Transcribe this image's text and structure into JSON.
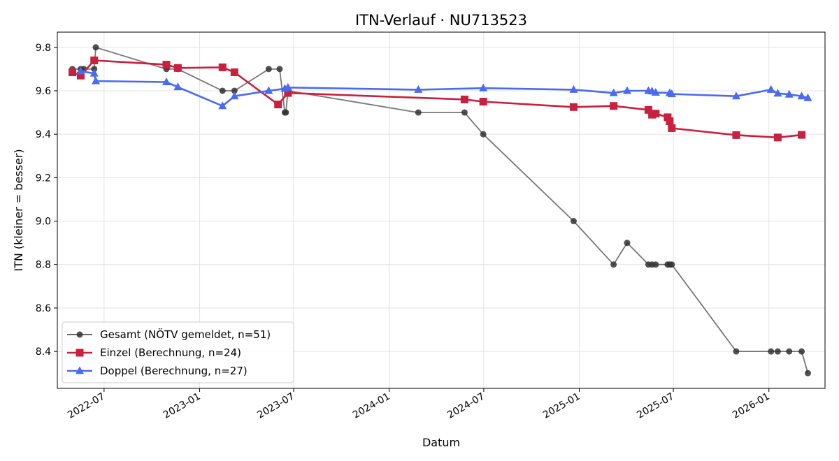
{
  "chart_data": {
    "type": "line",
    "title": "ITN-Verlauf · NU713523",
    "xlabel": "Datum",
    "ylabel": "ITN  (kleiner = besser)",
    "xlim": [
      "2022-04-02",
      "2026-04-19"
    ],
    "ylim": [
      8.23,
      9.87
    ],
    "x_ticks": [
      {
        "date": "2022-07-01",
        "label": "2022-07"
      },
      {
        "date": "2023-01-01",
        "label": "2023-01"
      },
      {
        "date": "2023-07-01",
        "label": "2023-07"
      },
      {
        "date": "2024-01-01",
        "label": "2024-01"
      },
      {
        "date": "2024-07-01",
        "label": "2024-07"
      },
      {
        "date": "2025-01-01",
        "label": "2025-01"
      },
      {
        "date": "2025-07-01",
        "label": "2025-07"
      },
      {
        "date": "2026-01-01",
        "label": "2026-01"
      }
    ],
    "y_ticks": [
      8.4,
      8.6,
      8.8,
      9.0,
      9.2,
      9.4,
      9.6,
      9.8
    ],
    "grid": true,
    "legend_position": "lower-left",
    "series": [
      {
        "name": "Gesamt (NÖTV gemeldet, n=51)",
        "color": "#555555",
        "marker": "circle",
        "points": [
          [
            "2022-05-01",
            9.7
          ],
          [
            "2022-05-17",
            9.7
          ],
          [
            "2022-05-23",
            9.7
          ],
          [
            "2022-06-12",
            9.7
          ],
          [
            "2022-06-15",
            9.8
          ],
          [
            "2022-10-29",
            9.7
          ],
          [
            "2022-11-20",
            9.7
          ],
          [
            "2023-02-14",
            9.6
          ],
          [
            "2023-03-09",
            9.6
          ],
          [
            "2023-05-14",
            9.7
          ],
          [
            "2023-06-04",
            9.7
          ],
          [
            "2023-06-14",
            9.5
          ],
          [
            "2023-06-16",
            9.5
          ],
          [
            "2023-06-20",
            9.6
          ],
          [
            "2024-02-26",
            9.5
          ],
          [
            "2024-05-25",
            9.5
          ],
          [
            "2024-06-30",
            9.4
          ],
          [
            "2024-12-21",
            9.0
          ],
          [
            "2025-03-08",
            8.8
          ],
          [
            "2025-04-03",
            8.9
          ],
          [
            "2025-05-14",
            8.8
          ],
          [
            "2025-05-21",
            8.8
          ],
          [
            "2025-05-28",
            8.8
          ],
          [
            "2025-06-20",
            8.8
          ],
          [
            "2025-06-24",
            8.8
          ],
          [
            "2025-06-28",
            8.8
          ],
          [
            "2025-10-30",
            8.4
          ],
          [
            "2026-01-05",
            8.4
          ],
          [
            "2026-01-18",
            8.4
          ],
          [
            "2026-02-09",
            8.4
          ],
          [
            "2026-03-05",
            8.4
          ],
          [
            "2026-03-17",
            8.3
          ]
        ]
      },
      {
        "name": "Einzel (Berechnung, n=24)",
        "color": "#c8203f",
        "marker": "square",
        "points": [
          [
            "2022-05-01",
            9.685
          ],
          [
            "2022-05-17",
            9.67
          ],
          [
            "2022-06-12",
            9.74
          ],
          [
            "2022-10-29",
            9.72
          ],
          [
            "2022-11-20",
            9.705
          ],
          [
            "2023-02-14",
            9.708
          ],
          [
            "2023-03-09",
            9.685
          ],
          [
            "2023-06-01",
            9.537
          ],
          [
            "2023-06-20",
            9.59
          ],
          [
            "2024-05-25",
            9.56
          ],
          [
            "2024-06-30",
            9.55
          ],
          [
            "2024-12-21",
            9.525
          ],
          [
            "2025-03-08",
            9.53
          ],
          [
            "2025-05-14",
            9.512
          ],
          [
            "2025-05-21",
            9.49
          ],
          [
            "2025-05-28",
            9.495
          ],
          [
            "2025-06-20",
            9.478
          ],
          [
            "2025-06-24",
            9.46
          ],
          [
            "2025-06-28",
            9.428
          ],
          [
            "2025-10-30",
            9.396
          ],
          [
            "2026-01-18",
            9.385
          ],
          [
            "2026-03-05",
            9.397
          ]
        ]
      },
      {
        "name": "Doppel (Berechnung, n=27)",
        "color": "#4a6af0",
        "marker": "triangle",
        "points": [
          [
            "2022-05-17",
            9.69
          ],
          [
            "2022-06-12",
            9.68
          ],
          [
            "2022-06-15",
            9.645
          ],
          [
            "2022-10-29",
            9.64
          ],
          [
            "2022-11-20",
            9.617
          ],
          [
            "2023-02-14",
            9.53
          ],
          [
            "2023-03-09",
            9.575
          ],
          [
            "2023-05-14",
            9.6
          ],
          [
            "2023-06-14",
            9.61
          ],
          [
            "2023-06-20",
            9.615
          ],
          [
            "2024-02-26",
            9.605
          ],
          [
            "2024-06-30",
            9.612
          ],
          [
            "2024-12-21",
            9.605
          ],
          [
            "2025-03-08",
            9.59
          ],
          [
            "2025-04-03",
            9.6
          ],
          [
            "2025-05-14",
            9.6
          ],
          [
            "2025-05-21",
            9.598
          ],
          [
            "2025-05-28",
            9.592
          ],
          [
            "2025-06-24",
            9.59
          ],
          [
            "2025-06-28",
            9.585
          ],
          [
            "2025-10-30",
            9.575
          ],
          [
            "2026-01-05",
            9.605
          ],
          [
            "2026-01-18",
            9.588
          ],
          [
            "2026-02-09",
            9.583
          ],
          [
            "2026-03-05",
            9.575
          ],
          [
            "2026-03-17",
            9.567
          ]
        ]
      }
    ]
  }
}
